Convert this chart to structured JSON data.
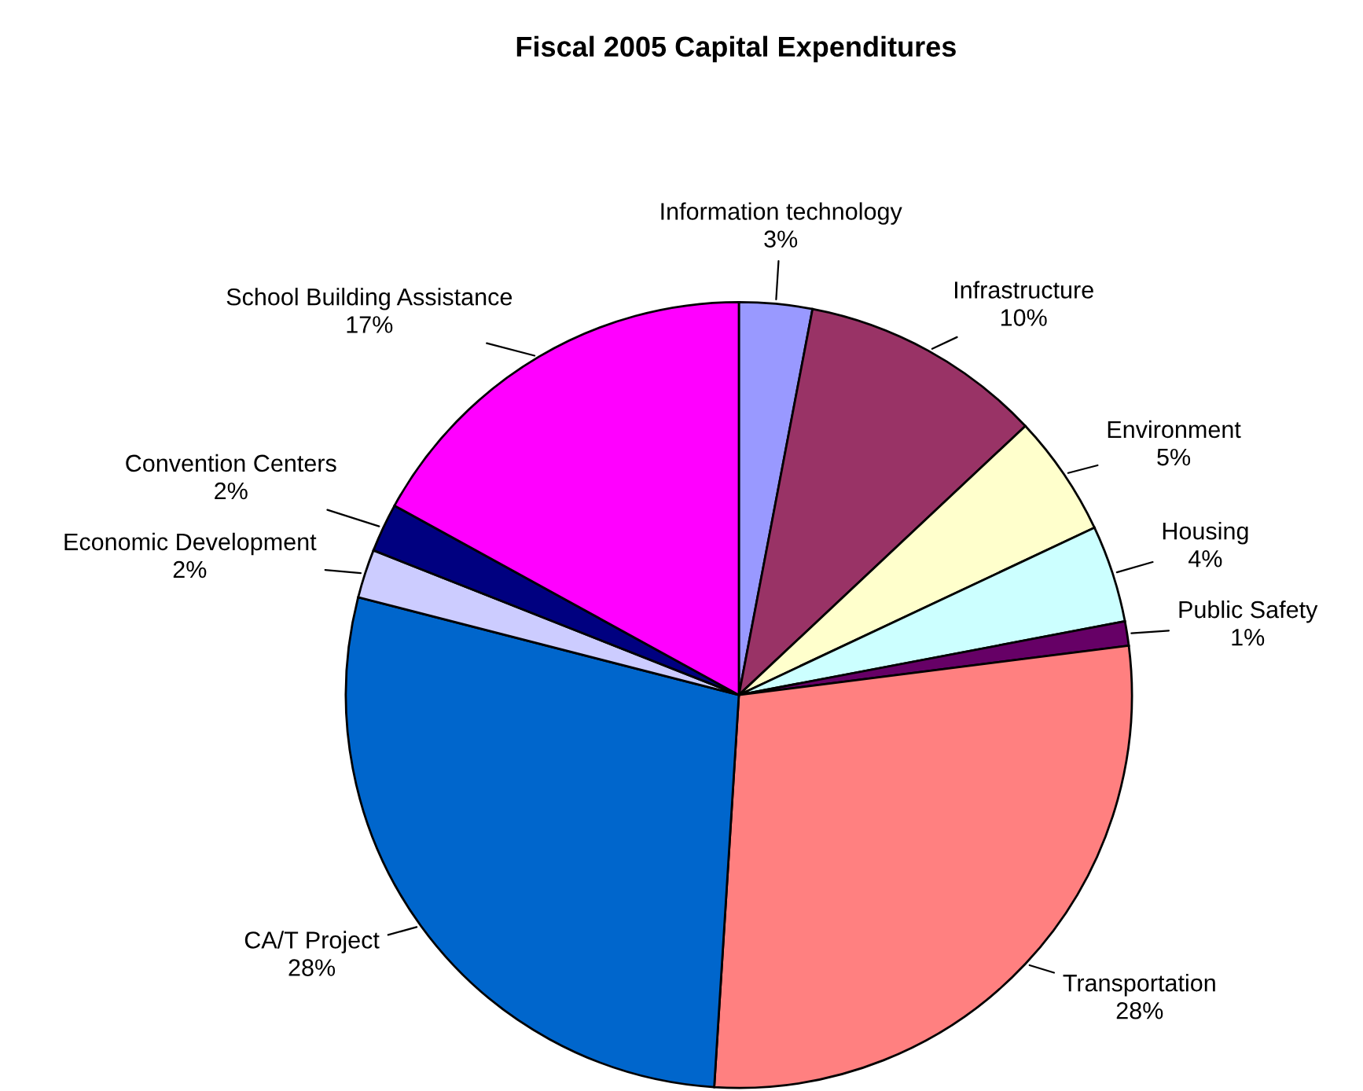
{
  "chart_data": {
    "type": "pie",
    "title": "Fiscal 2005 Capital Expenditures",
    "categories": [
      "Information technology",
      "Infrastructure",
      "Environment",
      "Housing",
      "Public Safety",
      "Transportation",
      "CA/T Project",
      "Economic Development",
      "Convention Centers",
      "School Building Assistance"
    ],
    "values": [
      3,
      10,
      5,
      4,
      1,
      28,
      28,
      2,
      2,
      17
    ],
    "value_labels": [
      "3%",
      "10%",
      "5%",
      "4%",
      "1%",
      "28%",
      "28%",
      "2%",
      "2%",
      "17%"
    ],
    "colors": [
      "#9999ff",
      "#993366",
      "#ffffcc",
      "#ccffff",
      "#660066",
      "#ff8080",
      "#0066cc",
      "#ccccff",
      "#000080",
      "#ff00ff"
    ],
    "legend": false
  }
}
